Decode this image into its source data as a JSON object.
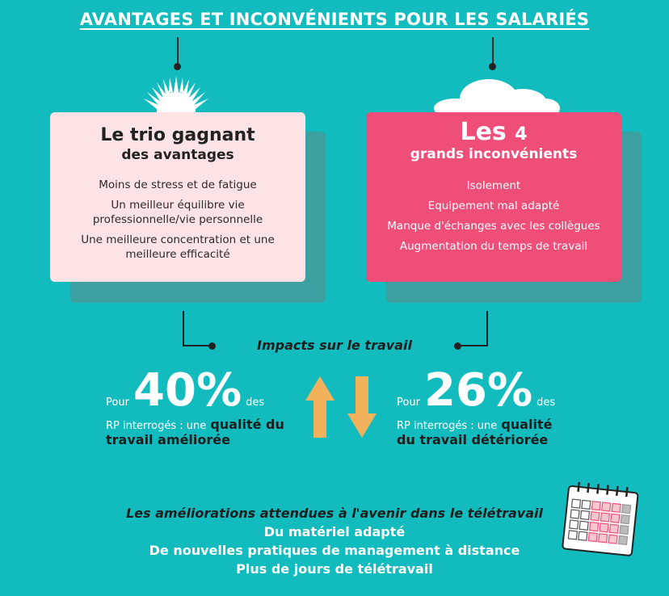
{
  "title": "AVANTAGES ET INCONVÉNIENTS POUR LES SALARIÉS",
  "advantages": {
    "title_big": "Le trio gagnant",
    "title_sub": "des avantages",
    "items": [
      "Moins de stress et de fatigue",
      "Un meilleur équilibre vie professionnelle/vie personnelle",
      "Une meilleure concentration et une meilleure efficacité"
    ]
  },
  "disadvantages": {
    "title_big": "Les",
    "title_num": "4",
    "title_sub": "grands inconvénients",
    "items": [
      "Isolement",
      "Equipement mal adapté",
      "Manque d'échanges avec les collègues",
      "Augmentation du temps de travail"
    ]
  },
  "impacts": {
    "label": "Impacts sur le travail",
    "improved": {
      "prefix": "Pour",
      "value": "40%",
      "suffix": "des",
      "line2": "RP interrogés : une",
      "strong1": "qualité du",
      "strong2": "travail améliorée"
    },
    "deteriorated": {
      "prefix": "Pour",
      "value": "26%",
      "suffix": "des",
      "line2": "RP interrogés : une",
      "strong1": "qualité",
      "strong2": "du travail détériorée"
    }
  },
  "expectations": {
    "lead": "Les améliorations attendues à l'avenir dans le télétravail",
    "items": [
      "Du matériel adapté",
      "De nouvelles pratiques de management à distance",
      "Plus de jours de télétravail"
    ]
  },
  "colors": {
    "background": "#12BBBD",
    "pink_light": "#FDE3E5",
    "pink": "#EE4E77",
    "arrow": "#F2B25C"
  },
  "icons": [
    "sun-icon",
    "cloud-icon",
    "arrow-up-icon",
    "arrow-down-icon",
    "calendar-icon"
  ]
}
